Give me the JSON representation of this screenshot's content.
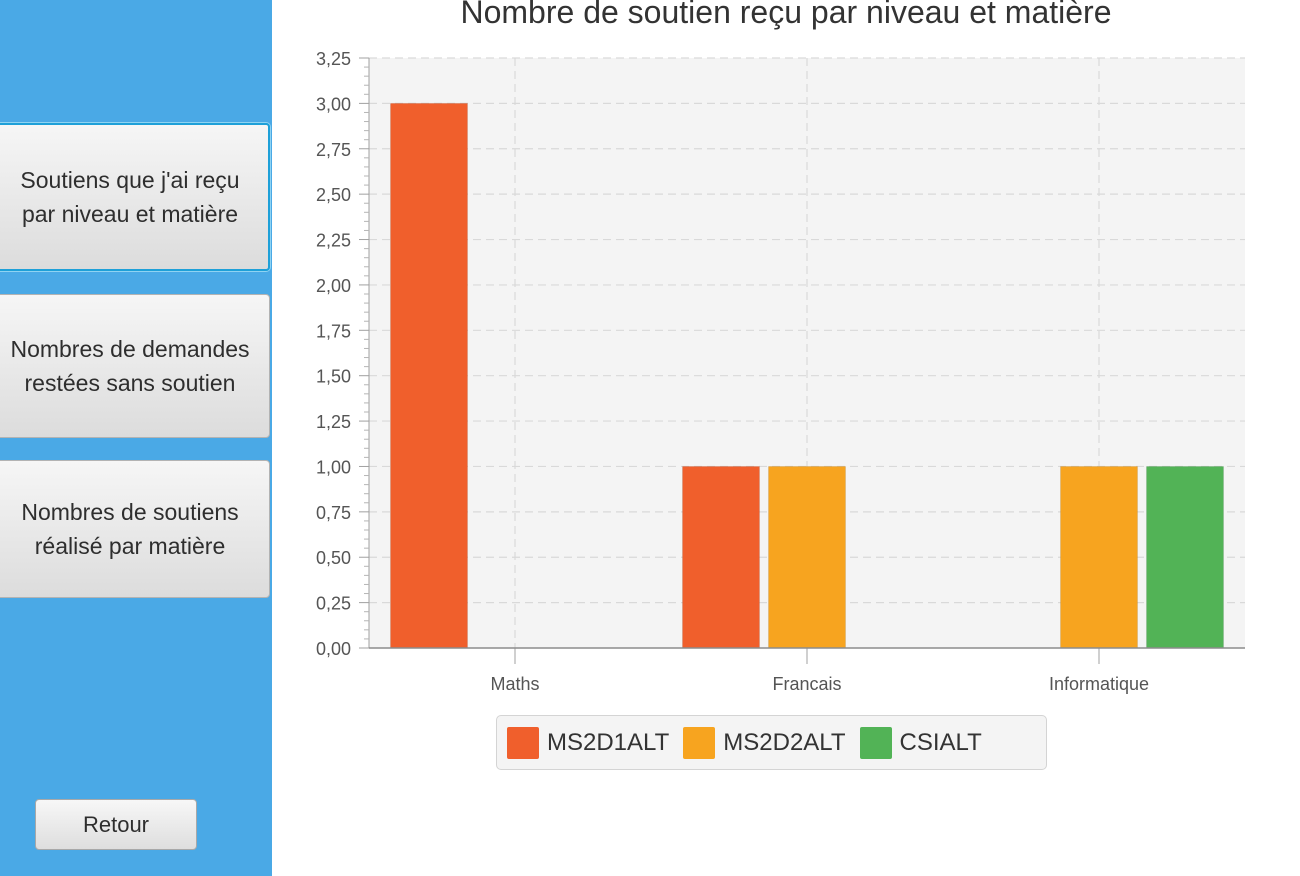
{
  "sidebar": {
    "buttons": [
      {
        "label": "Soutiens que j'ai reçu\npar niveau et matière",
        "focused": true
      },
      {
        "label": "Nombres de demandes\nrestées sans soutien",
        "focused": false
      },
      {
        "label": "Nombres de soutiens\nréalisé par matière",
        "focused": false
      }
    ],
    "back_label": "Retour",
    "background": "#4aa9e6"
  },
  "chart_data": {
    "type": "bar",
    "title": "Nombre de soutien reçu par niveau et matière",
    "xlabel": "",
    "ylabel": "",
    "categories": [
      "Maths",
      "Francais",
      "Informatique"
    ],
    "series": [
      {
        "name": "MS2D1ALT",
        "color": "#f05f2c",
        "values": [
          3,
          1,
          0
        ]
      },
      {
        "name": "MS2D2ALT",
        "color": "#f7a41f",
        "values": [
          0,
          1,
          1
        ]
      },
      {
        "name": "CSIALT",
        "color": "#52b356",
        "values": [
          0,
          0,
          1
        ]
      }
    ],
    "ylim": [
      0,
      3.25
    ],
    "ytick_step": 0.25,
    "ytick_labels": [
      "0,00",
      "0,25",
      "0,50",
      "0,75",
      "1,00",
      "1,25",
      "1,50",
      "1,75",
      "2,00",
      "2,25",
      "2,50",
      "2,75",
      "3,00",
      "3,25"
    ],
    "grid": true,
    "legend": "bottom"
  }
}
